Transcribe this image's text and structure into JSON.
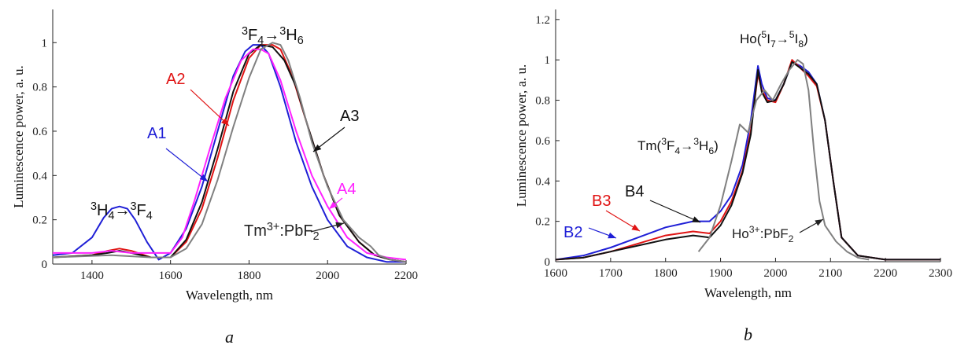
{
  "chart_data": [
    {
      "type": "line",
      "panel_label": "a",
      "xlabel": "Wavelength, nm",
      "ylabel": "Luminescence power, a. u.",
      "xlim": [
        1300,
        2200
      ],
      "ylim": [
        0,
        1.15
      ],
      "xticks": [
        1400,
        1600,
        1800,
        2000,
        2200
      ],
      "yticks": [
        0,
        0.2,
        0.4,
        0.6,
        0.8,
        1
      ],
      "ytick_labels": [
        "0",
        "0.2",
        "0.4",
        "0.6",
        "0.8",
        "1"
      ],
      "grid": false,
      "series": [
        {
          "name": "A1",
          "color": "#1f1fd6",
          "x": [
            1300,
            1350,
            1400,
            1430,
            1450,
            1470,
            1490,
            1510,
            1540,
            1570,
            1600,
            1640,
            1680,
            1720,
            1760,
            1790,
            1810,
            1830,
            1850,
            1880,
            1920,
            1960,
            2000,
            2050,
            2100,
            2150,
            2200
          ],
          "y": [
            0.04,
            0.05,
            0.12,
            0.21,
            0.25,
            0.26,
            0.25,
            0.2,
            0.1,
            0.02,
            0.05,
            0.16,
            0.35,
            0.6,
            0.85,
            0.96,
            0.99,
            0.99,
            0.95,
            0.8,
            0.55,
            0.35,
            0.2,
            0.08,
            0.03,
            0.01,
            0.01
          ]
        },
        {
          "name": "A2",
          "color": "#e01414",
          "x": [
            1300,
            1400,
            1440,
            1470,
            1500,
            1550,
            1600,
            1640,
            1680,
            1720,
            1760,
            1800,
            1830,
            1860,
            1880,
            1910,
            1950,
            1990,
            2030,
            2080,
            2120,
            2160,
            2200
          ],
          "y": [
            0.03,
            0.04,
            0.06,
            0.07,
            0.06,
            0.03,
            0.03,
            0.1,
            0.25,
            0.48,
            0.74,
            0.93,
            0.99,
            0.99,
            0.97,
            0.85,
            0.62,
            0.4,
            0.22,
            0.1,
            0.04,
            0.02,
            0.01
          ]
        },
        {
          "name": "A3",
          "color": "#111111",
          "x": [
            1300,
            1400,
            1440,
            1470,
            1500,
            1550,
            1600,
            1640,
            1680,
            1720,
            1760,
            1800,
            1830,
            1860,
            1890,
            1920,
            1950,
            1990,
            2030,
            2080,
            2120,
            2160,
            2200
          ],
          "y": [
            0.03,
            0.04,
            0.05,
            0.06,
            0.05,
            0.03,
            0.03,
            0.11,
            0.28,
            0.52,
            0.78,
            0.95,
            0.99,
            0.98,
            0.92,
            0.8,
            0.62,
            0.4,
            0.22,
            0.1,
            0.04,
            0.02,
            0.01
          ]
        },
        {
          "name": "A4",
          "color": "#ff22ff",
          "x": [
            1300,
            1350,
            1400,
            1450,
            1500,
            1550,
            1600,
            1630,
            1660,
            1700,
            1740,
            1780,
            1810,
            1830,
            1850,
            1880,
            1920,
            1960,
            2000,
            2050,
            2100,
            2150,
            2200
          ],
          "y": [
            0.05,
            0.05,
            0.05,
            0.06,
            0.05,
            0.05,
            0.05,
            0.12,
            0.28,
            0.52,
            0.75,
            0.92,
            0.97,
            0.97,
            0.95,
            0.83,
            0.6,
            0.4,
            0.26,
            0.12,
            0.05,
            0.03,
            0.02
          ]
        },
        {
          "name": "Tm3+:PbF2",
          "color": "#808080",
          "x": [
            1300,
            1450,
            1550,
            1600,
            1640,
            1680,
            1720,
            1760,
            1800,
            1830,
            1860,
            1880,
            1900,
            1930,
            1960,
            2000,
            2040,
            2080,
            2110,
            2130,
            2160,
            2200
          ],
          "y": [
            0.03,
            0.04,
            0.03,
            0.03,
            0.07,
            0.18,
            0.38,
            0.62,
            0.84,
            0.97,
            1.0,
            0.99,
            0.92,
            0.75,
            0.55,
            0.35,
            0.2,
            0.12,
            0.08,
            0.04,
            0.02,
            0.01
          ]
        }
      ],
      "annotations": [
        {
          "text_parts": [
            [
              "3",
              "sup"
            ],
            [
              "H",
              "n"
            ],
            [
              "4",
              "sub"
            ],
            [
              "→",
              "n"
            ],
            [
              "3",
              "sup"
            ],
            [
              "F",
              "n"
            ],
            [
              "4",
              "sub"
            ]
          ]
        },
        {
          "text_parts": [
            [
              "3",
              "sup"
            ],
            [
              "F",
              "n"
            ],
            [
              "4",
              "sub"
            ],
            [
              "→",
              "n"
            ],
            [
              "3",
              "sup"
            ],
            [
              "H",
              "n"
            ],
            [
              "6",
              "sub"
            ]
          ]
        },
        {
          "label": "A1",
          "color": "#1f1fd6"
        },
        {
          "label": "A2",
          "color": "#e01414"
        },
        {
          "label": "A3",
          "color": "#111111"
        },
        {
          "label": "A4",
          "color": "#ff22ff"
        },
        {
          "text_parts": [
            [
              "Tm",
              "n"
            ],
            [
              "3+",
              "sup"
            ],
            [
              ":PbF",
              "n"
            ],
            [
              "2",
              "sub"
            ]
          ]
        }
      ]
    },
    {
      "type": "line",
      "panel_label": "b",
      "xlabel": "Wavelength, nm",
      "ylabel": "Luminescence power, a. u.",
      "xlim": [
        1600,
        2300
      ],
      "ylim": [
        0,
        1.25
      ],
      "xticks": [
        1600,
        1700,
        1800,
        1900,
        2000,
        2100,
        2200,
        2300
      ],
      "yticks": [
        0,
        0.2,
        0.4,
        0.6,
        0.8,
        1,
        1.2
      ],
      "ytick_labels": [
        "0",
        "0.2",
        "0.4",
        "0.6",
        "0.8",
        "1",
        "1.2"
      ],
      "grid": false,
      "series": [
        {
          "name": "B2",
          "color": "#1f1fd6",
          "x": [
            1600,
            1650,
            1700,
            1750,
            1800,
            1850,
            1880,
            1900,
            1920,
            1940,
            1955,
            1968,
            1975,
            1985,
            2000,
            2015,
            2030,
            2045,
            2060,
            2075,
            2090,
            2105,
            2120,
            2150,
            2200,
            2250,
            2300
          ],
          "y": [
            0.01,
            0.03,
            0.07,
            0.12,
            0.17,
            0.2,
            0.2,
            0.25,
            0.33,
            0.48,
            0.7,
            0.97,
            0.88,
            0.81,
            0.8,
            0.88,
            0.99,
            0.97,
            0.94,
            0.88,
            0.7,
            0.4,
            0.12,
            0.03,
            0.01,
            0.01,
            0.01
          ]
        },
        {
          "name": "B3",
          "color": "#e01414",
          "x": [
            1600,
            1650,
            1700,
            1750,
            1800,
            1850,
            1880,
            1900,
            1920,
            1940,
            1955,
            1968,
            1975,
            1985,
            2000,
            2015,
            2030,
            2045,
            2060,
            2075,
            2090,
            2105,
            2120,
            2150,
            2200,
            2250,
            2300
          ],
          "y": [
            0.01,
            0.02,
            0.05,
            0.09,
            0.13,
            0.15,
            0.14,
            0.2,
            0.3,
            0.45,
            0.65,
            0.93,
            0.85,
            0.8,
            0.79,
            0.88,
            1.0,
            0.96,
            0.92,
            0.87,
            0.7,
            0.4,
            0.12,
            0.03,
            0.01,
            0.01,
            0.01
          ]
        },
        {
          "name": "B4",
          "color": "#111111",
          "x": [
            1600,
            1650,
            1700,
            1750,
            1800,
            1850,
            1880,
            1900,
            1920,
            1940,
            1955,
            1968,
            1975,
            1985,
            2000,
            2015,
            2030,
            2045,
            2060,
            2075,
            2090,
            2105,
            2120,
            2150,
            2200,
            2250,
            2300
          ],
          "y": [
            0.01,
            0.02,
            0.05,
            0.08,
            0.11,
            0.13,
            0.12,
            0.18,
            0.28,
            0.44,
            0.63,
            0.95,
            0.84,
            0.79,
            0.8,
            0.88,
            0.99,
            0.96,
            0.93,
            0.88,
            0.7,
            0.4,
            0.12,
            0.03,
            0.01,
            0.01,
            0.01
          ]
        },
        {
          "name": "Ho3+:PbF2",
          "color": "#808080",
          "x": [
            1860,
            1880,
            1900,
            1920,
            1935,
            1950,
            1965,
            1980,
            1995,
            2010,
            2025,
            2040,
            2050,
            2060,
            2070,
            2080,
            2090,
            2110,
            2130,
            2150,
            2170
          ],
          "y": [
            0.05,
            0.12,
            0.28,
            0.5,
            0.68,
            0.64,
            0.8,
            0.85,
            0.8,
            0.88,
            0.95,
            1.0,
            0.98,
            0.85,
            0.55,
            0.3,
            0.18,
            0.1,
            0.05,
            0.02,
            0.01
          ]
        }
      ],
      "annotations": [
        {
          "text_parts": [
            [
              "Ho(",
              "n"
            ],
            [
              "5",
              "sup"
            ],
            [
              "I",
              "n"
            ],
            [
              "7",
              "sub"
            ],
            [
              "→",
              "n"
            ],
            [
              "5",
              "sup"
            ],
            [
              "I",
              "n"
            ],
            [
              "8",
              "sub"
            ],
            [
              ")",
              "n"
            ]
          ]
        },
        {
          "text_parts": [
            [
              "Tm(",
              "n"
            ],
            [
              "3",
              "sup"
            ],
            [
              "F",
              "n"
            ],
            [
              "4",
              "sub"
            ],
            [
              "→",
              "n"
            ],
            [
              "3",
              "sup"
            ],
            [
              "H",
              "n"
            ],
            [
              "6",
              "sub"
            ],
            [
              ")",
              "n"
            ]
          ]
        },
        {
          "label": "B2",
          "color": "#1f1fd6"
        },
        {
          "label": "B3",
          "color": "#e01414"
        },
        {
          "label": "B4",
          "color": "#111111"
        },
        {
          "text_parts": [
            [
              "Ho",
              "n"
            ],
            [
              "3+",
              "sup"
            ],
            [
              ":PbF",
              "n"
            ],
            [
              "2",
              "sub"
            ]
          ]
        }
      ]
    }
  ]
}
